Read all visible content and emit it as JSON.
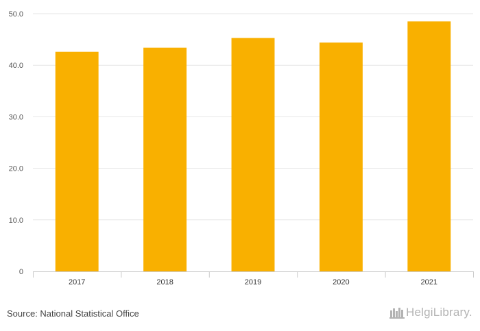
{
  "chart_data": {
    "type": "bar",
    "categories": [
      "2017",
      "2018",
      "2019",
      "2020",
      "2021"
    ],
    "values": [
      42.6,
      43.4,
      45.3,
      44.4,
      48.5
    ],
    "y_ticks": [
      "0",
      "10.0",
      "20.0",
      "30.0",
      "40.0",
      "50.0"
    ],
    "ylim": [
      0,
      50
    ],
    "grid": true,
    "bar_color": "#F9B000"
  },
  "footer": {
    "source": "Source: National Statistical Office",
    "logo_text": "HelgiLibrary."
  },
  "colors": {
    "bar": "#F9B000",
    "grid": "#e6e6e6"
  }
}
